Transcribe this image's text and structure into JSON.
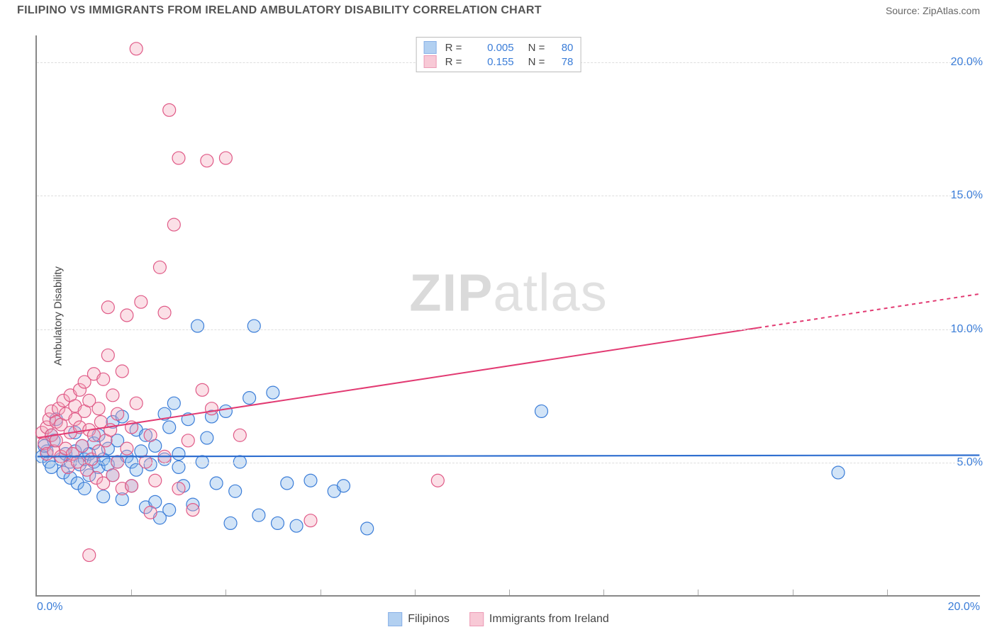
{
  "header": {
    "title": "FILIPINO VS IMMIGRANTS FROM IRELAND AMBULATORY DISABILITY CORRELATION CHART",
    "source": "Source: ZipAtlas.com"
  },
  "chart": {
    "type": "scatter",
    "watermark": "ZIPatlas",
    "y_axis_label": "Ambulatory Disability",
    "xlim": [
      0,
      20
    ],
    "ylim": [
      0,
      21
    ],
    "y_ticks": [
      5,
      10,
      15,
      20
    ],
    "y_tick_labels": [
      "5.0%",
      "10.0%",
      "15.0%",
      "20.0%"
    ],
    "x_tick_labels": [
      "0.0%",
      "20.0%"
    ],
    "x_minor_ticks": [
      2,
      4,
      6,
      8,
      10,
      12,
      14,
      16,
      18
    ],
    "tick_color": "#3b7dd8",
    "grid_color": "#e0e0e0",
    "axis_color": "#888888",
    "background_color": "#ffffff",
    "marker_radius": 9,
    "marker_stroke_width": 1.2,
    "marker_fill_opacity": 0.35,
    "series": [
      {
        "id": "filipinos",
        "label": "Filipinos",
        "color_fill": "#7fb1e8",
        "color_stroke": "#3b7dd8",
        "R": "0.005",
        "N": "80",
        "points": [
          [
            0.1,
            5.2
          ],
          [
            0.2,
            5.4
          ],
          [
            0.15,
            5.6
          ],
          [
            0.3,
            6.0
          ],
          [
            0.25,
            5.0
          ],
          [
            0.35,
            5.8
          ],
          [
            0.4,
            6.6
          ],
          [
            0.3,
            4.8
          ],
          [
            0.5,
            5.1
          ],
          [
            0.55,
            4.6
          ],
          [
            0.6,
            5.3
          ],
          [
            0.7,
            4.4
          ],
          [
            0.7,
            5.0
          ],
          [
            0.8,
            5.4
          ],
          [
            0.8,
            6.1
          ],
          [
            0.85,
            4.2
          ],
          [
            0.9,
            4.9
          ],
          [
            0.95,
            5.6
          ],
          [
            1.0,
            5.1
          ],
          [
            1.0,
            4.0
          ],
          [
            1.1,
            5.3
          ],
          [
            1.1,
            4.5
          ],
          [
            1.2,
            5.0
          ],
          [
            1.2,
            5.7
          ],
          [
            1.3,
            4.8
          ],
          [
            1.3,
            6.0
          ],
          [
            1.4,
            5.1
          ],
          [
            1.4,
            3.7
          ],
          [
            1.5,
            4.9
          ],
          [
            1.5,
            5.5
          ],
          [
            1.6,
            6.5
          ],
          [
            1.6,
            4.5
          ],
          [
            1.7,
            5.0
          ],
          [
            1.7,
            5.8
          ],
          [
            1.8,
            6.7
          ],
          [
            1.8,
            3.6
          ],
          [
            1.9,
            5.2
          ],
          [
            2.0,
            5.0
          ],
          [
            2.0,
            4.1
          ],
          [
            2.1,
            6.2
          ],
          [
            2.1,
            4.7
          ],
          [
            2.2,
            5.4
          ],
          [
            2.3,
            6.0
          ],
          [
            2.3,
            3.3
          ],
          [
            2.4,
            4.9
          ],
          [
            2.5,
            5.6
          ],
          [
            2.5,
            3.5
          ],
          [
            2.6,
            2.9
          ],
          [
            2.7,
            6.8
          ],
          [
            2.7,
            5.1
          ],
          [
            2.8,
            6.3
          ],
          [
            2.8,
            3.2
          ],
          [
            2.9,
            7.2
          ],
          [
            3.0,
            4.8
          ],
          [
            3.0,
            5.3
          ],
          [
            3.1,
            4.1
          ],
          [
            3.2,
            6.6
          ],
          [
            3.3,
            3.4
          ],
          [
            3.4,
            10.1
          ],
          [
            3.5,
            5.0
          ],
          [
            3.6,
            5.9
          ],
          [
            3.7,
            6.7
          ],
          [
            3.8,
            4.2
          ],
          [
            4.0,
            6.9
          ],
          [
            4.1,
            2.7
          ],
          [
            4.2,
            3.9
          ],
          [
            4.3,
            5.0
          ],
          [
            4.5,
            7.4
          ],
          [
            4.6,
            10.1
          ],
          [
            4.7,
            3.0
          ],
          [
            5.0,
            7.6
          ],
          [
            5.1,
            2.7
          ],
          [
            5.3,
            4.2
          ],
          [
            5.5,
            2.6
          ],
          [
            5.8,
            4.3
          ],
          [
            6.3,
            3.9
          ],
          [
            6.5,
            4.1
          ],
          [
            10.7,
            6.9
          ],
          [
            17.0,
            4.6
          ],
          [
            7.0,
            2.5
          ]
        ],
        "trend": {
          "y_at_x0": 5.2,
          "y_at_xmax": 5.25,
          "solid_until_x": 20,
          "stroke": "#2f6fd0",
          "stroke_width": 2.2
        }
      },
      {
        "id": "ireland",
        "label": "Immigrants from Ireland",
        "color_fill": "#f4a6bb",
        "color_stroke": "#e05a87",
        "R": "0.155",
        "N": "78",
        "points": [
          [
            0.1,
            6.1
          ],
          [
            0.15,
            5.7
          ],
          [
            0.2,
            6.3
          ],
          [
            0.2,
            5.3
          ],
          [
            0.25,
            6.6
          ],
          [
            0.3,
            6.0
          ],
          [
            0.3,
            6.9
          ],
          [
            0.35,
            5.4
          ],
          [
            0.4,
            6.5
          ],
          [
            0.4,
            5.8
          ],
          [
            0.45,
            7.0
          ],
          [
            0.5,
            5.2
          ],
          [
            0.5,
            6.4
          ],
          [
            0.55,
            7.3
          ],
          [
            0.6,
            5.5
          ],
          [
            0.6,
            6.8
          ],
          [
            0.65,
            4.8
          ],
          [
            0.7,
            6.1
          ],
          [
            0.7,
            7.5
          ],
          [
            0.75,
            5.3
          ],
          [
            0.8,
            6.6
          ],
          [
            0.8,
            7.1
          ],
          [
            0.85,
            5.0
          ],
          [
            0.9,
            6.3
          ],
          [
            0.9,
            7.7
          ],
          [
            0.95,
            5.6
          ],
          [
            1.0,
            6.9
          ],
          [
            1.0,
            8.0
          ],
          [
            1.05,
            4.7
          ],
          [
            1.1,
            6.2
          ],
          [
            1.1,
            7.3
          ],
          [
            1.15,
            5.1
          ],
          [
            1.2,
            8.3
          ],
          [
            1.2,
            6.0
          ],
          [
            1.25,
            4.4
          ],
          [
            1.3,
            7.0
          ],
          [
            1.3,
            5.4
          ],
          [
            1.35,
            6.5
          ],
          [
            1.4,
            8.1
          ],
          [
            1.4,
            4.2
          ],
          [
            1.45,
            5.8
          ],
          [
            1.5,
            9.0
          ],
          [
            1.5,
            10.8
          ],
          [
            1.55,
            6.2
          ],
          [
            1.6,
            4.5
          ],
          [
            1.6,
            7.5
          ],
          [
            1.7,
            5.0
          ],
          [
            1.7,
            6.8
          ],
          [
            1.8,
            4.0
          ],
          [
            1.8,
            8.4
          ],
          [
            1.9,
            10.5
          ],
          [
            1.9,
            5.5
          ],
          [
            2.0,
            6.3
          ],
          [
            2.0,
            4.1
          ],
          [
            2.1,
            7.2
          ],
          [
            2.2,
            11.0
          ],
          [
            2.1,
            20.5
          ],
          [
            2.3,
            5.0
          ],
          [
            2.4,
            3.1
          ],
          [
            2.4,
            6.0
          ],
          [
            2.5,
            4.3
          ],
          [
            2.6,
            12.3
          ],
          [
            2.7,
            10.6
          ],
          [
            2.7,
            5.2
          ],
          [
            2.8,
            18.2
          ],
          [
            2.9,
            13.9
          ],
          [
            3.0,
            16.4
          ],
          [
            3.0,
            4.0
          ],
          [
            3.2,
            5.8
          ],
          [
            3.3,
            3.2
          ],
          [
            3.5,
            7.7
          ],
          [
            3.6,
            16.3
          ],
          [
            3.7,
            7.0
          ],
          [
            4.0,
            16.4
          ],
          [
            4.3,
            6.0
          ],
          [
            5.8,
            2.8
          ],
          [
            8.5,
            4.3
          ],
          [
            1.1,
            1.5
          ]
        ],
        "trend": {
          "y_at_x0": 5.9,
          "y_at_xmax": 11.3,
          "solid_until_x": 15.3,
          "stroke": "#e23a72",
          "stroke_width": 2.0
        }
      }
    ]
  },
  "legend_top": {
    "r_label": "R =",
    "n_label": "N ="
  },
  "legend_bottom": {
    "items": [
      "Filipinos",
      "Immigrants from Ireland"
    ]
  }
}
